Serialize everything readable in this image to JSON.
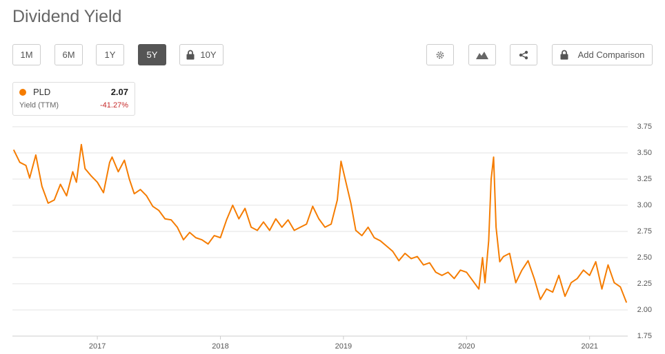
{
  "toolbar": {
    "ranges": [
      "1M",
      "6M",
      "1Y",
      "5Y",
      "10Y"
    ],
    "add_comparison": "Add Comparison"
  },
  "chart_data": {
    "type": "line",
    "title": "Dividend Yield",
    "legend_box": {
      "last": 2.07,
      "metric": "Yield (TTM)",
      "change": "-41.27%"
    },
    "x": [
      2016.32,
      2016.37,
      2016.42,
      2016.45,
      2016.5,
      2016.55,
      2016.6,
      2016.65,
      2016.7,
      2016.75,
      2016.8,
      2016.83,
      2016.87,
      2016.9,
      2016.95,
      2017.0,
      2017.05,
      2017.1,
      2017.12,
      2017.17,
      2017.22,
      2017.26,
      2017.3,
      2017.35,
      2017.4,
      2017.45,
      2017.5,
      2017.55,
      2017.6,
      2017.65,
      2017.7,
      2017.75,
      2017.8,
      2017.85,
      2017.9,
      2017.95,
      2018.0,
      2018.05,
      2018.1,
      2018.15,
      2018.2,
      2018.25,
      2018.3,
      2018.35,
      2018.4,
      2018.45,
      2018.5,
      2018.55,
      2018.6,
      2018.65,
      2018.7,
      2018.75,
      2018.8,
      2018.85,
      2018.9,
      2018.95,
      2018.98,
      2019.02,
      2019.06,
      2019.1,
      2019.15,
      2019.2,
      2019.25,
      2019.3,
      2019.35,
      2019.4,
      2019.45,
      2019.5,
      2019.55,
      2019.6,
      2019.65,
      2019.7,
      2019.75,
      2019.8,
      2019.85,
      2019.9,
      2019.95,
      2020.0,
      2020.05,
      2020.1,
      2020.13,
      2020.15,
      2020.18,
      2020.2,
      2020.22,
      2020.24,
      2020.27,
      2020.3,
      2020.35,
      2020.4,
      2020.45,
      2020.5,
      2020.55,
      2020.6,
      2020.65,
      2020.7,
      2020.75,
      2020.8,
      2020.85,
      2020.9,
      2020.95,
      2021.0,
      2021.05,
      2021.1,
      2021.15,
      2021.2,
      2021.25,
      2021.3
    ],
    "series": [
      {
        "name": "PLD",
        "color": "#f57c00",
        "values": [
          3.53,
          3.41,
          3.38,
          3.26,
          3.48,
          3.18,
          3.02,
          3.05,
          3.2,
          3.09,
          3.32,
          3.22,
          3.58,
          3.35,
          3.28,
          3.22,
          3.12,
          3.41,
          3.46,
          3.32,
          3.43,
          3.25,
          3.11,
          3.15,
          3.09,
          2.99,
          2.95,
          2.87,
          2.86,
          2.79,
          2.67,
          2.74,
          2.69,
          2.67,
          2.63,
          2.71,
          2.69,
          2.86,
          3.0,
          2.87,
          2.97,
          2.79,
          2.76,
          2.84,
          2.76,
          2.87,
          2.79,
          2.86,
          2.76,
          2.79,
          2.82,
          2.99,
          2.87,
          2.79,
          2.82,
          3.05,
          3.42,
          3.22,
          3.02,
          2.76,
          2.71,
          2.79,
          2.69,
          2.66,
          2.61,
          2.56,
          2.47,
          2.54,
          2.49,
          2.51,
          2.43,
          2.45,
          2.36,
          2.33,
          2.36,
          2.3,
          2.38,
          2.36,
          2.28,
          2.2,
          2.5,
          2.26,
          2.66,
          3.25,
          3.46,
          2.79,
          2.46,
          2.51,
          2.54,
          2.26,
          2.38,
          2.47,
          2.3,
          2.1,
          2.2,
          2.17,
          2.33,
          2.13,
          2.26,
          2.3,
          2.38,
          2.33,
          2.46,
          2.2,
          2.43,
          2.26,
          2.22,
          2.07
        ]
      }
    ],
    "xlim": [
      2016.31,
      2021.31
    ],
    "xticks": [
      2017,
      2018,
      2019,
      2020,
      2021
    ],
    "ylim": [
      1.75,
      3.75
    ],
    "yticks": [
      1.75,
      {
        "value": 2.0,
        "label": "2.00"
      },
      2.25,
      {
        "value": 2.5,
        "label": "2.50"
      },
      2.75,
      {
        "value": 3.0,
        "label": "3.00"
      },
      3.25,
      {
        "value": 3.5,
        "label": "3.50"
      },
      3.75
    ],
    "grid": true
  }
}
